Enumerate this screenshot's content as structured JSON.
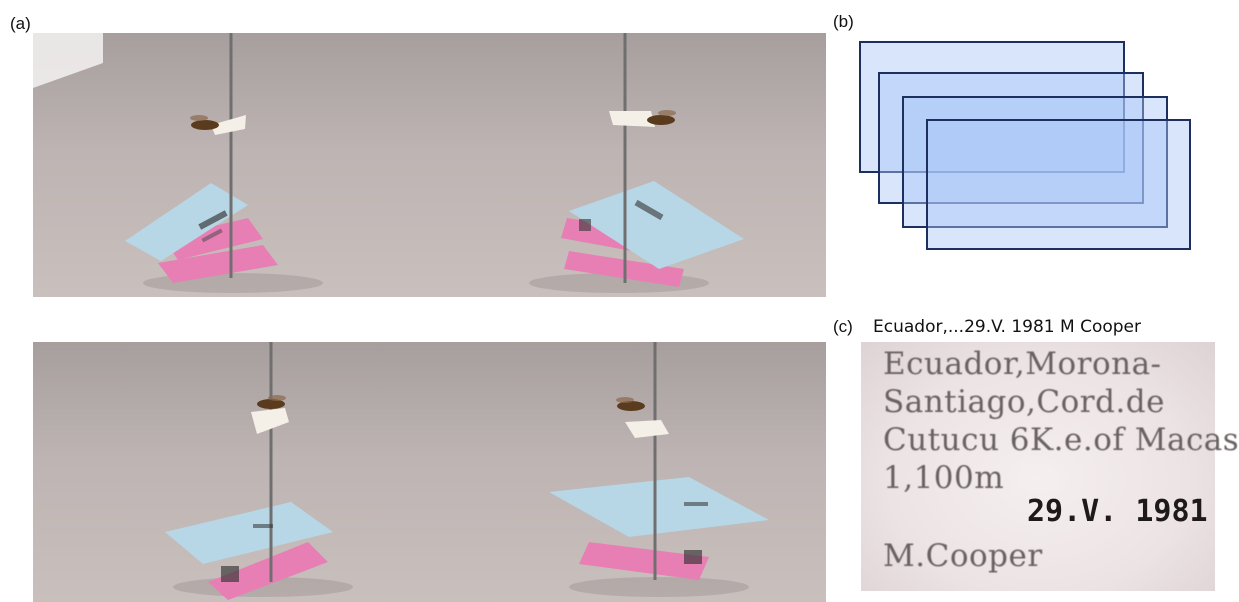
{
  "panels": {
    "a_label": "(a)",
    "b_label": "(b)",
    "c_label": "(c)"
  },
  "caption_c": "Ecuador,...29.V. 1981  M Cooper",
  "label_text": {
    "line1": "Ecuador,Morona-",
    "line2": "Santiago,Cord.de",
    "line3": "Cutucu 6K.e.of Macas",
    "line4": "1,100m",
    "date": "29.V. 1981",
    "collector": "M.Cooper"
  },
  "colors": {
    "rect_fill": "#a9c6f7",
    "rect_stroke": "#1c2f5e",
    "blue_label": "#b7d6e6",
    "pink_label": "#e77fb4"
  }
}
